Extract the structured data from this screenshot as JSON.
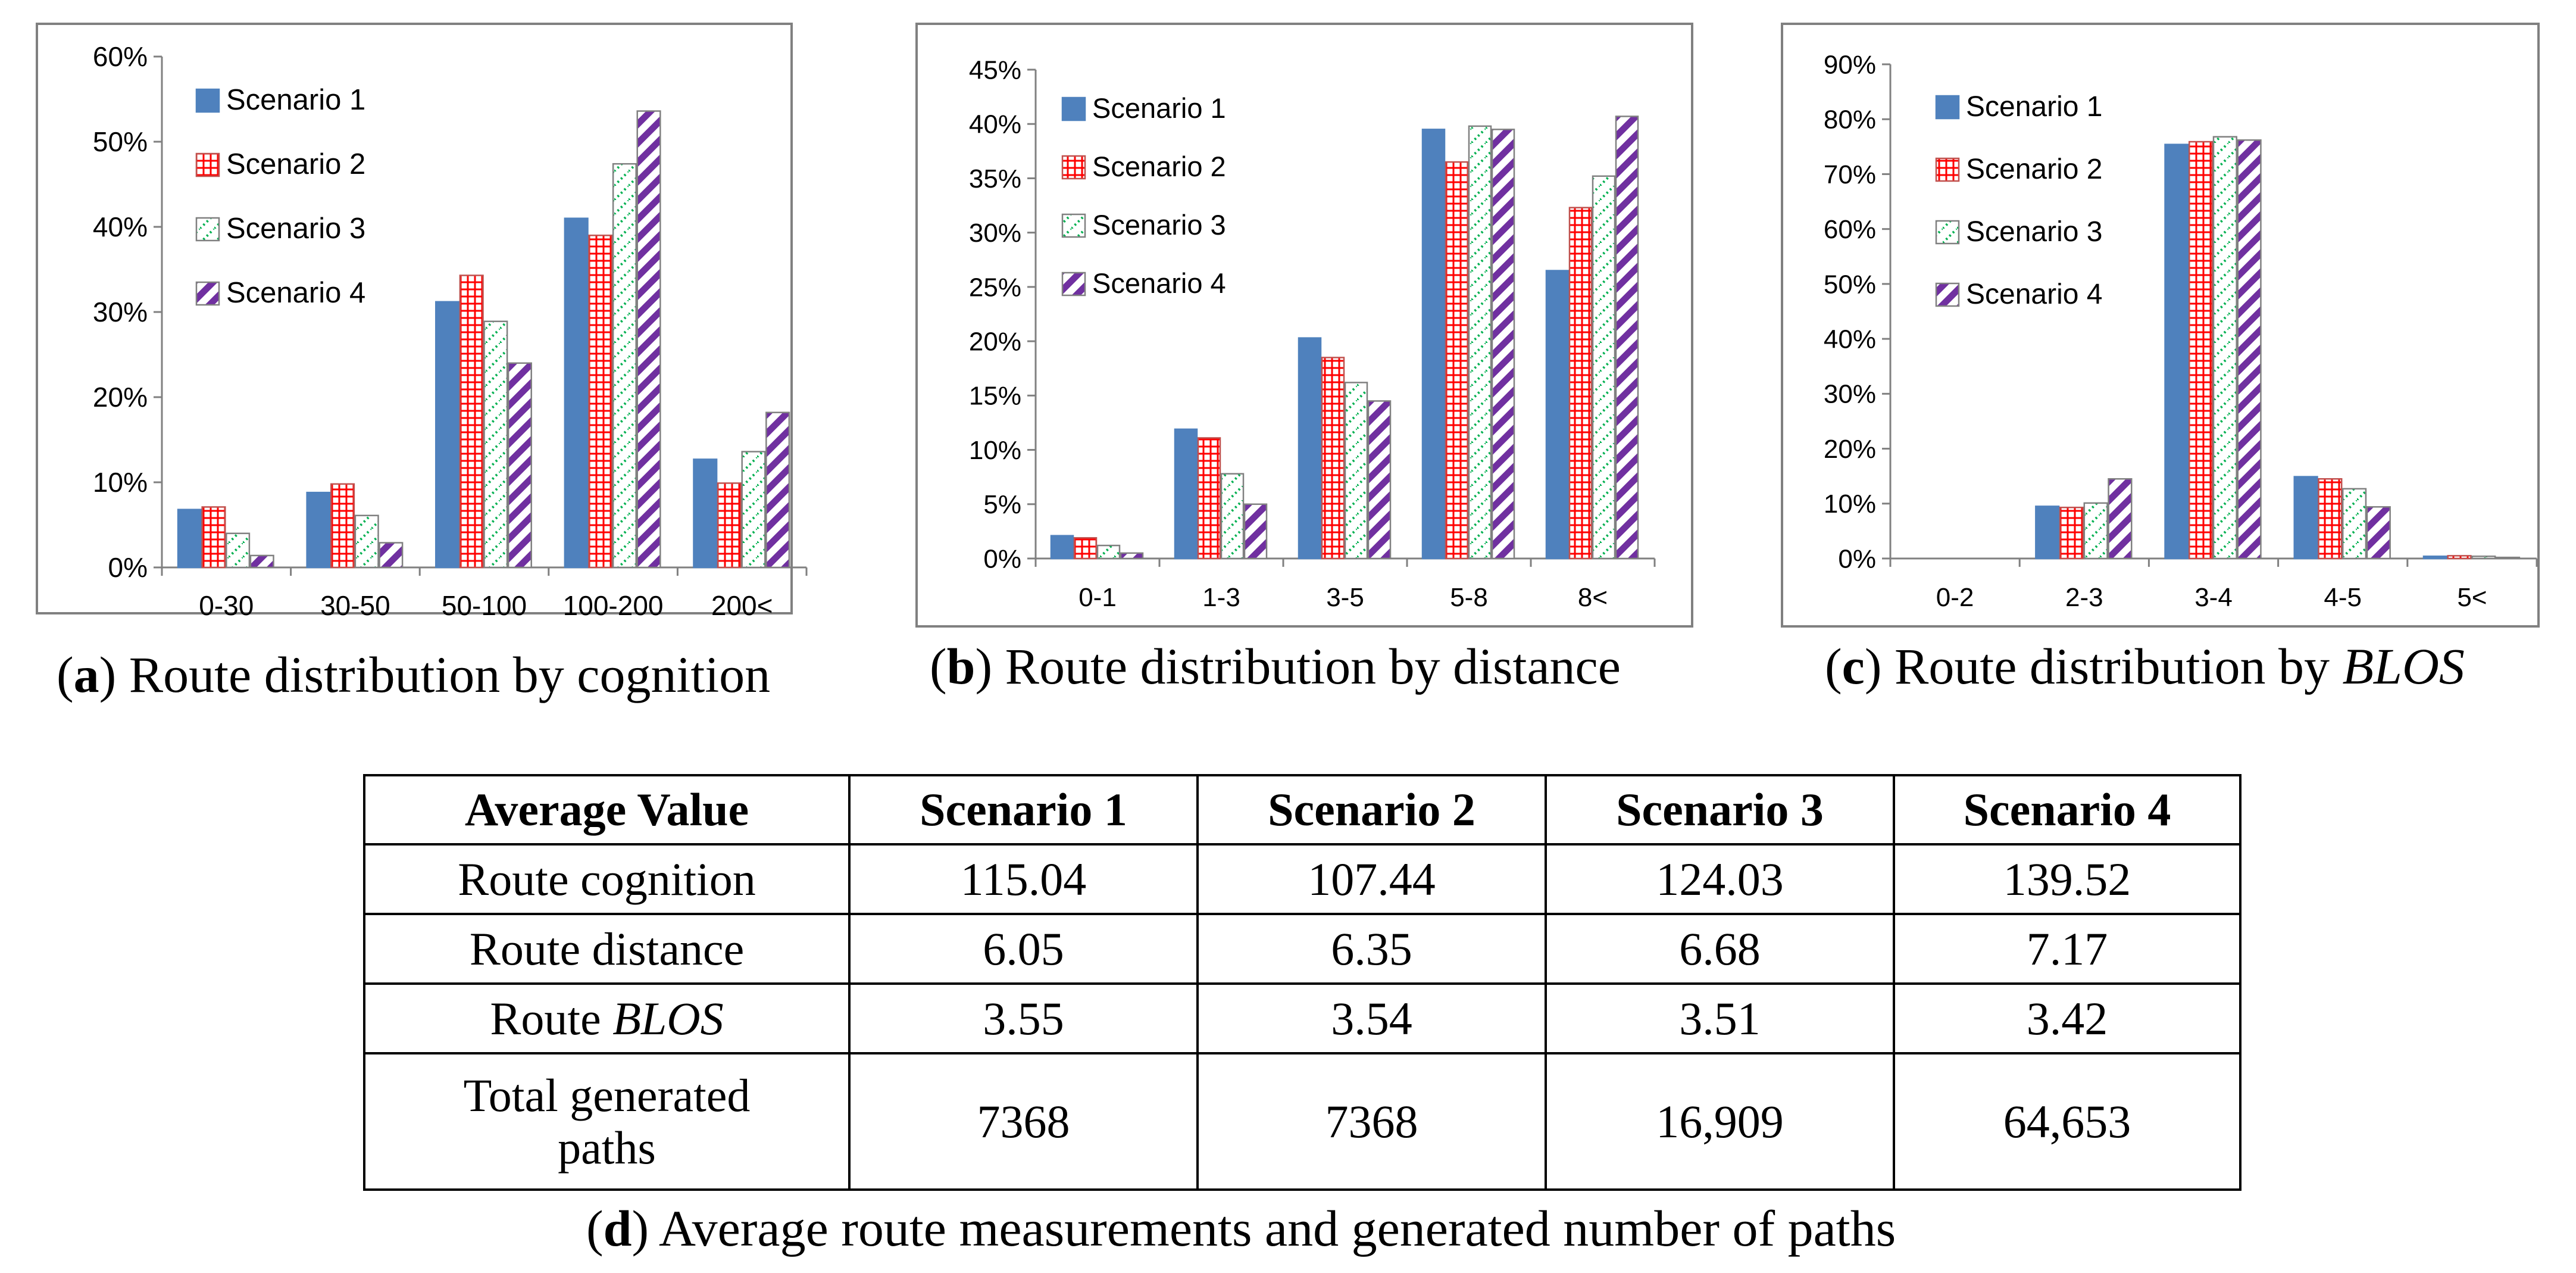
{
  "charts": [
    {
      "id": "a",
      "caption_letter": "a",
      "caption_text": "Route distribution by cognition",
      "caption_italic": ""
    },
    {
      "id": "b",
      "caption_letter": "b",
      "caption_text": "Route distribution by distance",
      "caption_italic": ""
    },
    {
      "id": "c",
      "caption_letter": "c",
      "caption_text": "Route distribution by ",
      "caption_italic": "BLOS"
    }
  ],
  "chart_data": [
    {
      "type": "bar",
      "title": "",
      "xlabel": "",
      "ylabel": "",
      "categories": [
        "0-30",
        "30-50",
        "50-100",
        "100-200",
        "200<"
      ],
      "ylim": [
        0,
        60
      ],
      "yticks": [
        0,
        10,
        20,
        30,
        40,
        50,
        60
      ],
      "tick_suffix": "%",
      "legend_position": "top-left",
      "series": [
        {
          "name": "Scenario 1",
          "values": [
            6.8,
            8.8,
            31.2,
            41.0,
            12.7
          ]
        },
        {
          "name": "Scenario 2",
          "values": [
            7.1,
            9.8,
            34.3,
            39.0,
            9.9
          ]
        },
        {
          "name": "Scenario 3",
          "values": [
            4.0,
            6.1,
            28.9,
            47.4,
            13.6
          ]
        },
        {
          "name": "Scenario 4",
          "values": [
            1.4,
            2.9,
            24.0,
            53.6,
            18.2
          ]
        }
      ]
    },
    {
      "type": "bar",
      "title": "",
      "xlabel": "",
      "ylabel": "",
      "categories": [
        "0-1",
        "1-3",
        "3-5",
        "5-8",
        "8<"
      ],
      "ylim": [
        0,
        45
      ],
      "yticks": [
        0,
        5,
        10,
        15,
        20,
        25,
        30,
        35,
        40,
        45
      ],
      "tick_suffix": "%",
      "legend_position": "top-left",
      "series": [
        {
          "name": "Scenario 1",
          "values": [
            2.1,
            11.9,
            20.3,
            39.5,
            26.5
          ]
        },
        {
          "name": "Scenario 2",
          "values": [
            1.9,
            11.1,
            18.5,
            36.5,
            32.3
          ]
        },
        {
          "name": "Scenario 3",
          "values": [
            1.2,
            7.8,
            16.2,
            39.8,
            35.2
          ]
        },
        {
          "name": "Scenario 4",
          "values": [
            0.5,
            5.0,
            14.5,
            39.5,
            40.7
          ]
        }
      ]
    },
    {
      "type": "bar",
      "title": "",
      "xlabel": "",
      "ylabel": "",
      "categories": [
        "0-2",
        "2-3",
        "3-4",
        "4-5",
        "5<"
      ],
      "ylim": [
        0,
        90
      ],
      "yticks": [
        0,
        10,
        20,
        30,
        40,
        50,
        60,
        70,
        80,
        90
      ],
      "tick_suffix": "%",
      "legend_position": "top-left",
      "series": [
        {
          "name": "Scenario 1",
          "values": [
            0,
            9.5,
            75.4,
            14.9,
            0.4
          ]
        },
        {
          "name": "Scenario 2",
          "values": [
            0,
            9.3,
            75.9,
            14.5,
            0.5
          ]
        },
        {
          "name": "Scenario 3",
          "values": [
            0,
            10.1,
            76.8,
            12.7,
            0.4
          ]
        },
        {
          "name": "Scenario 4",
          "values": [
            0,
            14.5,
            76.2,
            9.4,
            0.2
          ]
        }
      ]
    }
  ],
  "series_styles": [
    {
      "fill": "#4f81bd",
      "pattern": "solid",
      "color": "#4f81bd"
    },
    {
      "fill": "#ff0000",
      "pattern": "grid",
      "color": "#ff0000"
    },
    {
      "fill": "#00b050",
      "pattern": "diag-dots",
      "color": "#00b050"
    },
    {
      "fill": "#7030a0",
      "pattern": "diag-stripes",
      "color": "#7030a0"
    }
  ],
  "table": {
    "headers": [
      "Average Value",
      "Scenario 1",
      "Scenario 2",
      "Scenario 3",
      "Scenario 4"
    ],
    "rows": [
      {
        "label": "Route cognition",
        "label_italic": "",
        "values": [
          "115.04",
          "107.44",
          "124.03",
          "139.52"
        ]
      },
      {
        "label": "Route distance",
        "label_italic": "",
        "values": [
          "6.05",
          "6.35",
          "6.68",
          "7.17"
        ]
      },
      {
        "label": "Route ",
        "label_italic": "BLOS",
        "values": [
          "3.55",
          "3.54",
          "3.51",
          "3.42"
        ]
      },
      {
        "label": "Total generated paths",
        "label_italic": "",
        "values": [
          "7368",
          "7368",
          "16,909",
          "64,653"
        ]
      }
    ],
    "caption_letter": "d",
    "caption_text": "Average route measurements and generated number of paths"
  }
}
